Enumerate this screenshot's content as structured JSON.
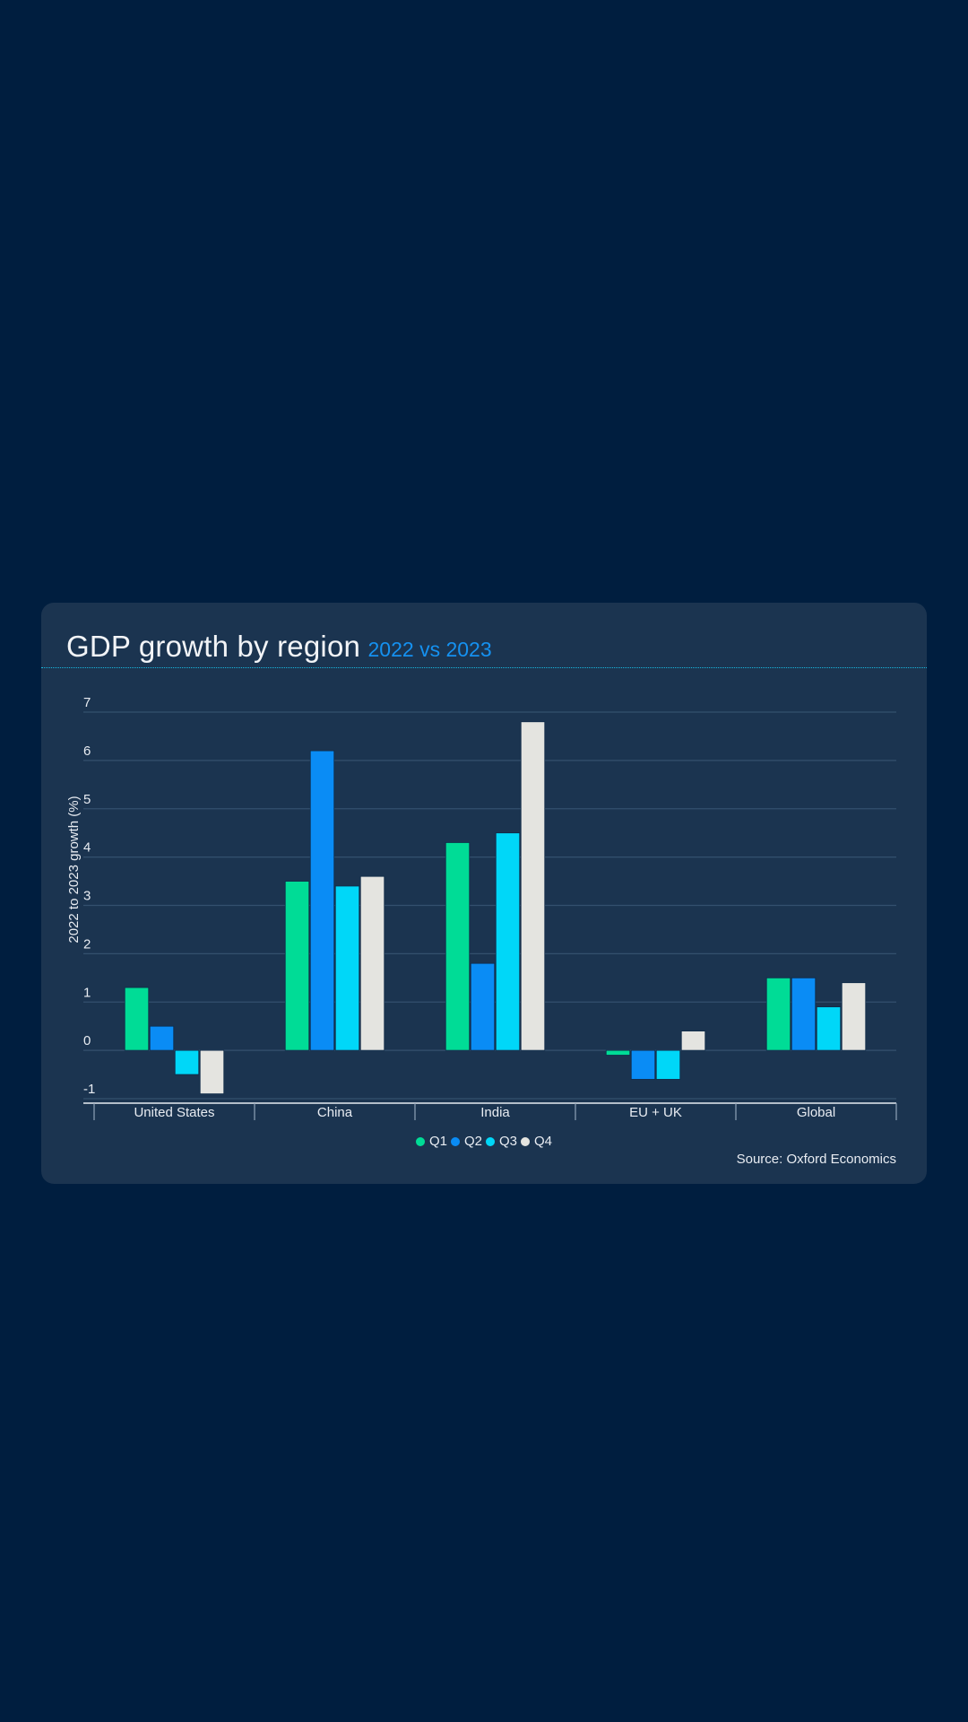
{
  "card": {
    "title": "GDP growth by region",
    "subtitle": "2022 vs 2023",
    "source": "Source: Oxford Economics"
  },
  "colors": {
    "background": "#001e3f",
    "card": "#1b3450",
    "accent": "#1591f0",
    "divider": "#18b9e0",
    "gridline": "#34506e",
    "axis": "#e8ecf2"
  },
  "chart_data": {
    "type": "bar",
    "title": "GDP growth by region",
    "subtitle": "2022 vs 2023",
    "xlabel": "",
    "ylabel": "2022 to 2023 growth (%)",
    "ylim": [
      -1,
      7
    ],
    "yticks": [
      -1,
      0,
      1,
      2,
      3,
      4,
      5,
      6,
      7
    ],
    "grid": true,
    "legend_position": "bottom-center",
    "categories": [
      "United States",
      "China",
      "India",
      "EU + UK",
      "Global"
    ],
    "series": [
      {
        "name": "Q1",
        "color": "#00dc96",
        "values": [
          1.3,
          3.5,
          4.3,
          -0.1,
          1.5
        ]
      },
      {
        "name": "Q2",
        "color": "#0a8cf5",
        "values": [
          0.5,
          6.2,
          1.8,
          -0.6,
          1.5
        ]
      },
      {
        "name": "Q3",
        "color": "#00d7f8",
        "values": [
          -0.5,
          3.4,
          4.5,
          -0.6,
          0.9
        ]
      },
      {
        "name": "Q4",
        "color": "#e4e4e0",
        "values": [
          -0.9,
          3.6,
          6.8,
          0.4,
          1.4
        ]
      }
    ],
    "source": "Source: Oxford Economics"
  }
}
